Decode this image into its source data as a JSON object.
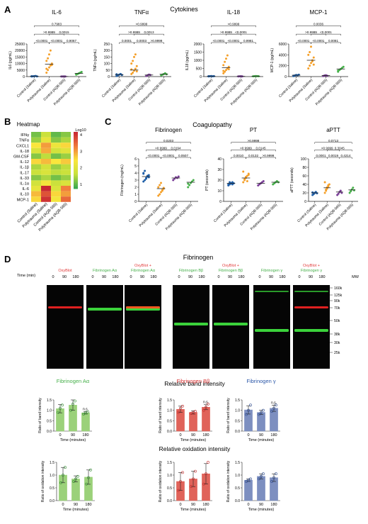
{
  "panels": {
    "A": {
      "letter": "A",
      "title": "Cytokines"
    },
    "B": {
      "letter": "B",
      "title": "Heatmap",
      "scale_label": "Log10",
      "scale_ticks": [
        "4",
        "3",
        "2",
        "1"
      ]
    },
    "C": {
      "letter": "C",
      "title": "Coagulopathy"
    },
    "D": {
      "letter": "D",
      "title": "Fibrinogen"
    }
  },
  "groups": [
    "Control (Saline)",
    "Polytrauma (Saline)",
    "Control (AQB-565)",
    "Polytrauma (AQB-565)"
  ],
  "colors": {
    "control_saline": "#1f5fa8",
    "polytrauma_saline": "#f5a02a",
    "control_aqb": "#7b3f98",
    "polytrauma_aqb": "#46b04a",
    "green_bar": "#9bd17a",
    "red_bar": "#e0635a",
    "blue_bar": "#7d8fc0"
  },
  "chart_data": [
    {
      "type": "scatter",
      "id": "il6",
      "title": "IL-6",
      "ylabel": "IL6 (pg/mL)",
      "ylim": [
        0,
        25000
      ],
      "yticks": [
        "0",
        "5000",
        "10000",
        "15000",
        "20000",
        "25000"
      ],
      "categories": [
        "Control (Saline)",
        "Polytrauma (Saline)",
        "Control (AQB-565)",
        "Polytrauma (AQB-565)"
      ],
      "means": [
        300,
        9500,
        100,
        2500
      ],
      "points": [
        [
          100,
          200,
          350,
          500,
          150,
          250
        ],
        [
          3000,
          5000,
          7000,
          8500,
          10000,
          12000,
          14000,
          17000,
          20000,
          9000,
          6000
        ],
        [
          50,
          100,
          150,
          80
        ],
        [
          1500,
          2000,
          2500,
          3000,
          3500,
          1800
        ]
      ],
      "pvalues": [
        {
          "a": 1,
          "b": 2,
          "label": "<0.0001"
        },
        {
          "a": 2,
          "b": 3,
          "label": "<0.0001"
        },
        {
          "a": 3,
          "b": 4,
          "label": "0.9067"
        },
        {
          "a": 1,
          "b": 3,
          "label": ">0.9999"
        },
        {
          "a": 2,
          "b": 4,
          "label": "0.0015"
        },
        {
          "a": 1,
          "b": 4,
          "label": "0.7983"
        }
      ]
    },
    {
      "type": "scatter",
      "id": "tnfa",
      "title": "TNFα",
      "ylabel": "TNFα (pg/mL)",
      "ylim": [
        0,
        250
      ],
      "yticks": [
        "0",
        "50",
        "100",
        "150",
        "200",
        "250"
      ],
      "categories": [
        "Control (Saline)",
        "Polytrauma (Saline)",
        "Control (AQB-565)",
        "Polytrauma (AQB-565)"
      ],
      "means": [
        15,
        50,
        12,
        18
      ],
      "points": [
        [
          5,
          10,
          15,
          20,
          12,
          18
        ],
        [
          20,
          30,
          45,
          60,
          80,
          100,
          120,
          150,
          170,
          40,
          55
        ],
        [
          5,
          10,
          15,
          12
        ],
        [
          10,
          15,
          20,
          25,
          18
        ]
      ],
      "pvalues": [
        {
          "a": 1,
          "b": 2,
          "label": "0.0001"
        },
        {
          "a": 2,
          "b": 3,
          "label": "0.0003"
        },
        {
          "a": 3,
          "b": 4,
          "label": ">0.9999"
        },
        {
          "a": 1,
          "b": 3,
          "label": ">0.9999"
        },
        {
          "a": 2,
          "b": 4,
          "label": "0.0013"
        },
        {
          "a": 1,
          "b": 4,
          "label": ">0.9999"
        }
      ]
    },
    {
      "type": "scatter",
      "id": "il18",
      "title": "IL-18",
      "ylabel": "IL18 (pg/mL)",
      "ylim": [
        0,
        2000
      ],
      "yticks": [
        "0",
        "500",
        "1000",
        "1500",
        "2000"
      ],
      "categories": [
        "Control (Saline)",
        "Polytrauma (Saline)",
        "Control (AQB-565)",
        "Polytrauma (AQB-565)"
      ],
      "means": [
        20,
        550,
        15,
        25
      ],
      "points": [
        [
          10,
          20,
          30,
          15,
          25,
          20
        ],
        [
          200,
          300,
          400,
          500,
          600,
          700,
          900,
          1100,
          1300,
          450,
          350
        ],
        [
          10,
          15,
          20,
          12
        ],
        [
          15,
          20,
          30,
          25,
          20
        ]
      ],
      "pvalues": [
        {
          "a": 1,
          "b": 2,
          "label": "<0.0001"
        },
        {
          "a": 2,
          "b": 3,
          "label": "<0.0001"
        },
        {
          "a": 3,
          "b": 4,
          "label": "0.9981"
        },
        {
          "a": 1,
          "b": 3,
          "label": ">0.9999"
        },
        {
          "a": 2,
          "b": 4,
          "label": "<0.0001"
        },
        {
          "a": 1,
          "b": 4,
          "label": ">0.9999"
        }
      ]
    },
    {
      "type": "scatter",
      "id": "mcp1",
      "title": "MCP-1",
      "ylabel": "MCP-1 (pg/mL)",
      "ylim": [
        0,
        6000
      ],
      "yticks": [
        "0",
        "2000",
        "4000",
        "6000"
      ],
      "categories": [
        "Control (Saline)",
        "Polytrauma (Saline)",
        "Control (AQB-565)",
        "Polytrauma (AQB-565)"
      ],
      "means": [
        250,
        3000,
        200,
        1400
      ],
      "points": [
        [
          100,
          200,
          300,
          250,
          350,
          150
        ],
        [
          1500,
          2000,
          2500,
          3000,
          3500,
          4000,
          4500,
          5500,
          2800,
          2200
        ],
        [
          100,
          200,
          250,
          150
        ],
        [
          900,
          1200,
          1400,
          1600,
          1800,
          1100
        ]
      ],
      "pvalues": [
        {
          "a": 1,
          "b": 2,
          "label": "<0.0001"
        },
        {
          "a": 2,
          "b": 3,
          "label": "<0.0001"
        },
        {
          "a": 3,
          "b": 4,
          "label": "0.0081"
        },
        {
          "a": 1,
          "b": 3,
          "label": ">0.9999"
        },
        {
          "a": 2,
          "b": 4,
          "label": "<0.0001"
        },
        {
          "a": 1,
          "b": 4,
          "label": "0.0036"
        }
      ]
    },
    {
      "type": "heatmap",
      "id": "heatmap",
      "rows": [
        "IFNγ",
        "TNFα",
        "CXCL1",
        "IL-18",
        "GM-CSF",
        "IL-12",
        "IL-1β",
        "IL-17",
        "IL-33",
        "IL-1α",
        "IL-6",
        "IL-10",
        "MCP-1"
      ],
      "columns": [
        "Control (Saline)",
        "Polytrauma (Saline)",
        "Control (AQB-565)",
        "Polytrauma (AQB-565)"
      ],
      "values": [
        [
          1.3,
          1.8,
          1.2,
          1.4
        ],
        [
          1.5,
          2.2,
          1.4,
          1.6
        ],
        [
          2.5,
          3.0,
          2.3,
          2.6
        ],
        [
          2.0,
          2.9,
          1.9,
          2.1
        ],
        [
          1.4,
          1.7,
          1.3,
          1.5
        ],
        [
          2.6,
          2.8,
          2.5,
          2.7
        ],
        [
          1.6,
          1.9,
          1.5,
          1.7
        ],
        [
          1.8,
          2.0,
          1.7,
          1.8
        ],
        [
          1.4,
          1.6,
          1.3,
          1.5
        ],
        [
          1.9,
          2.4,
          1.8,
          2.0
        ],
        [
          2.2,
          4.0,
          2.0,
          3.2
        ],
        [
          2.8,
          3.6,
          2.6,
          3.0
        ],
        [
          2.6,
          3.9,
          2.4,
          3.4
        ]
      ],
      "vmin": 1,
      "vmax": 4
    },
    {
      "type": "scatter",
      "id": "fibrinogen",
      "title": "Fibrinogen",
      "ylabel": "Fibrinogen (mg/mL)",
      "ylim": [
        0,
        6
      ],
      "yticks": [
        "0",
        "1",
        "2",
        "3",
        "4",
        "5",
        "6"
      ],
      "categories": [
        "Control (Saline)",
        "Polytrauma (Saline)",
        "Control (AQB-565)",
        "Polytrauma (AQB-565)"
      ],
      "means": [
        3.5,
        1.8,
        3.3,
        2.7
      ],
      "points": [
        [
          2.8,
          3.0,
          3.3,
          3.5,
          3.7,
          4.0,
          4.3,
          3.2,
          3.6,
          3.4,
          3.9
        ],
        [
          0.8,
          1.0,
          1.3,
          1.6,
          1.8,
          2.0,
          2.3,
          2.6,
          1.5,
          1.9
        ],
        [
          3.0,
          3.2,
          3.4,
          3.3,
          3.5
        ],
        [
          2.0,
          2.3,
          2.6,
          2.8,
          3.0,
          2.5
        ]
      ],
      "pvalues": [
        {
          "a": 1,
          "b": 2,
          "label": "<0.0001"
        },
        {
          "a": 2,
          "b": 3,
          "label": "<0.0001"
        },
        {
          "a": 3,
          "b": 4,
          "label": "0.0507"
        },
        {
          "a": 1,
          "b": 3,
          "label": ">0.9999"
        },
        {
          "a": 2,
          "b": 4,
          "label": "0.0194"
        },
        {
          "a": 1,
          "b": 4,
          "label": "0.0203"
        }
      ]
    },
    {
      "type": "scatter",
      "id": "pt",
      "title": "PT",
      "ylabel": "PT (seconds)",
      "ylim": [
        0,
        40
      ],
      "yticks": [
        "0",
        "10",
        "20",
        "30",
        "40"
      ],
      "categories": [
        "Control (Saline)",
        "Polytrauma (Saline)",
        "Control (AQB-565)",
        "Polytrauma (AQB-565)"
      ],
      "means": [
        17,
        22,
        17,
        18
      ],
      "points": [
        [
          15,
          16,
          17,
          18,
          17,
          16,
          18,
          17,
          16
        ],
        [
          18,
          20,
          22,
          24,
          26,
          28,
          21,
          23,
          19,
          25
        ],
        [
          15,
          16,
          17,
          18,
          19
        ],
        [
          16,
          17,
          18,
          19,
          18
        ]
      ],
      "pvalues": [
        {
          "a": 1,
          "b": 2,
          "label": "0.0010"
        },
        {
          "a": 2,
          "b": 3,
          "label": "0.0132"
        },
        {
          "a": 3,
          "b": 4,
          "label": ">0.9999"
        },
        {
          "a": 1,
          "b": 3,
          "label": ">0.9999"
        },
        {
          "a": 2,
          "b": 4,
          "label": "0.0145"
        },
        {
          "a": 1,
          "b": 4,
          "label": ">0.9999"
        }
      ]
    },
    {
      "type": "scatter",
      "id": "aptt",
      "title": "aPTT",
      "ylabel": "aPTT (seconds)",
      "ylim": [
        0,
        100
      ],
      "yticks": [
        "0",
        "20",
        "40",
        "60",
        "80",
        "100"
      ],
      "categories": [
        "Control (Saline)",
        "Polytrauma (Saline)",
        "Control (AQB-565)",
        "Polytrauma (AQB-565)"
      ],
      "means": [
        20,
        32,
        22,
        27
      ],
      "points": [
        [
          15,
          18,
          20,
          22,
          19,
          21,
          17,
          20
        ],
        [
          20,
          25,
          30,
          35,
          40,
          45,
          28,
          33,
          38
        ],
        [
          15,
          18,
          22,
          25,
          20
        ],
        [
          20,
          24,
          28,
          32,
          26
        ]
      ],
      "pvalues": [
        {
          "a": 1,
          "b": 2,
          "label": "0.0001"
        },
        {
          "a": 2,
          "b": 3,
          "label": "0.0019"
        },
        {
          "a": 3,
          "b": 4,
          "label": "0.4214"
        },
        {
          "a": 1,
          "b": 3,
          "label": ">0.9999"
        },
        {
          "a": 2,
          "b": 4,
          "label": "0.3045"
        },
        {
          "a": 1,
          "b": 4,
          "label": "0.0713"
        }
      ]
    },
    {
      "type": "bar",
      "id": "band_aa",
      "title": "Fibrinogen Aα",
      "ylabel": "Ratio of band intensity",
      "categories": [
        "0",
        "90",
        "180"
      ],
      "values": [
        1.08,
        1.25,
        0.88
      ],
      "errors": [
        0.2,
        0.25,
        0.06
      ],
      "points": [
        [
          0.9,
          1.1,
          1.25
        ],
        [
          1.0,
          1.3,
          1.45
        ],
        [
          0.82,
          0.88,
          0.93
        ]
      ],
      "ylim": [
        0,
        1.5
      ],
      "yticks": [
        "0.0",
        "0.5",
        "1.0",
        "1.5"
      ],
      "annotation": "n.s.",
      "xlabel": "Time (minutes)",
      "color": "#9bd17a",
      "title_color": "#46b04a"
    },
    {
      "type": "bar",
      "id": "band_bb",
      "title": "Fibrinogen Bβ",
      "ylabel": "Ratio of band intensity",
      "categories": [
        "0",
        "90",
        "180"
      ],
      "values": [
        1.05,
        0.9,
        1.15
      ],
      "errors": [
        0.15,
        0.08,
        0.12
      ],
      "points": [
        [
          0.9,
          1.1,
          1.2
        ],
        [
          0.85,
          0.9,
          0.95
        ],
        [
          1.0,
          1.15,
          1.3
        ]
      ],
      "ylim": [
        0,
        1.5
      ],
      "yticks": [
        "0.0",
        "0.5",
        "1.0",
        "1.5"
      ],
      "annotation": "n.s.",
      "xlabel": "Time (minutes)",
      "color": "#e0635a",
      "title_color": "#d62f2f"
    },
    {
      "type": "bar",
      "id": "band_g",
      "title": "Fibrinogen γ",
      "ylabel": "Ratio of band intensity",
      "categories": [
        "0",
        "90",
        "180"
      ],
      "values": [
        1.02,
        0.9,
        1.1
      ],
      "errors": [
        0.2,
        0.1,
        0.15
      ],
      "points": [
        [
          0.8,
          1.0,
          1.25
        ],
        [
          0.8,
          0.9,
          1.0
        ],
        [
          0.95,
          1.1,
          1.25
        ]
      ],
      "ylim": [
        0,
        1.5
      ],
      "yticks": [
        "0.0",
        "0.5",
        "1.0",
        "1.5"
      ],
      "annotation": "n.s.",
      "xlabel": "Time (minutes)",
      "color": "#7d8fc0",
      "title_color": "#2b57a8"
    },
    {
      "type": "bar",
      "id": "ox_aa",
      "ylabel": "Ratio of oxidation intensity",
      "categories": [
        "0",
        "90",
        "180"
      ],
      "values": [
        1.0,
        0.85,
        0.92
      ],
      "errors": [
        0.3,
        0.12,
        0.28
      ],
      "points": [
        [
          0.7,
          1.0,
          1.3
        ],
        [
          0.75,
          0.85,
          0.95
        ],
        [
          0.65,
          0.9,
          1.2
        ]
      ],
      "ylim": [
        0,
        1.5
      ],
      "yticks": [
        "0.0",
        "0.5",
        "1.0",
        "1.5"
      ],
      "xlabel": "Time (minutes)",
      "color": "#9bd17a"
    },
    {
      "type": "bar",
      "id": "ox_bb",
      "ylabel": "Ratio of oxidation intensity",
      "categories": [
        "0",
        "90",
        "180"
      ],
      "values": [
        0.75,
        0.85,
        1.05
      ],
      "errors": [
        0.35,
        0.3,
        0.4
      ],
      "points": [
        [
          0.4,
          0.75,
          1.1
        ],
        [
          0.55,
          0.85,
          1.15
        ],
        [
          0.65,
          1.05,
          1.5
        ]
      ],
      "ylim": [
        0,
        1.5
      ],
      "yticks": [
        "0.0",
        "0.5",
        "1.0",
        "1.5"
      ],
      "xlabel": "Time (minutes)",
      "color": "#e0635a"
    },
    {
      "type": "bar",
      "id": "ox_g",
      "ylabel": "Ratio of oxidation intensity",
      "categories": [
        "0",
        "90",
        "180"
      ],
      "values": [
        0.8,
        0.95,
        0.9
      ],
      "errors": [
        0.05,
        0.1,
        0.15
      ],
      "points": [
        [
          0.75,
          0.8,
          0.85
        ],
        [
          0.85,
          0.95,
          1.05
        ],
        [
          0.75,
          0.9,
          1.05
        ]
      ],
      "ylim": [
        0,
        1.5
      ],
      "yticks": [
        "0.0",
        "0.5",
        "1.0",
        "1.5"
      ],
      "xlabel": "Time (minutes)",
      "color": "#7d8fc0"
    }
  ],
  "blot": {
    "time_label": "Time (min)",
    "mw_label": "MW",
    "lanes": [
      "0",
      "90",
      "180"
    ],
    "mw_markers": [
      "160k",
      "125k",
      "90k",
      "70k",
      "50k",
      "38k",
      "30k",
      "25k"
    ],
    "panels": [
      {
        "label": "OxyBlot",
        "color": "#e23a3a"
      },
      {
        "label": "Fibrinogen Aα",
        "color": "#46b04a"
      },
      {
        "label": "OxyBlot + Fibrinogen Aα",
        "label1": "OxyBlot +",
        "label2": "Fibrinogen Aα",
        "color": "mix"
      },
      {
        "label": "Fibrinogen Bβ",
        "color": "#46b04a"
      },
      {
        "label": "OxyBlot + Fibrinogen Bβ",
        "label1": "OxyBlot +",
        "label2": "Fibrinogen Bβ",
        "color": "mix"
      },
      {
        "label": "Fibrinogen γ",
        "color": "#46b04a"
      },
      {
        "label": "OxyBlot + Fibrinogen γ",
        "label1": "OxyBlot +",
        "label2": "Fibrinogen γ",
        "color": "mix"
      }
    ]
  },
  "section_titles": {
    "band": "Relative band intensity",
    "oxidation": "Relative oxidation intensity"
  }
}
